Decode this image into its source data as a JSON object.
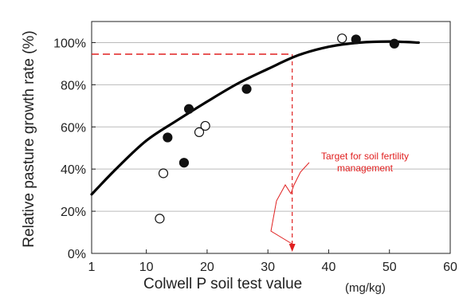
{
  "chart_data": {
    "type": "scatter",
    "title": "",
    "xlabel": "Colwell P soil test value",
    "xlabel_unit": "(mg/kg)",
    "ylabel": "Relative pasture growth rate (%)",
    "xlim": [
      1,
      60
    ],
    "ylim": [
      0,
      1.1
    ],
    "x_ticks": [
      1,
      10,
      20,
      30,
      40,
      50,
      60
    ],
    "x_tick_labels": [
      "1",
      "10",
      "20",
      "30",
      "40",
      "50",
      "60"
    ],
    "y_ticks": [
      0,
      0.2,
      0.4,
      0.6,
      0.8,
      1.0
    ],
    "y_tick_labels": [
      "0%",
      "20%",
      "40%",
      "60%",
      "80%",
      "100%"
    ],
    "grid": "horizontal",
    "series": [
      {
        "marker": "filled-circle",
        "points": [
          {
            "x": 13.5,
            "y": 0.55
          },
          {
            "x": 17.0,
            "y": 0.685
          },
          {
            "x": 16.2,
            "y": 0.43
          },
          {
            "x": 26.5,
            "y": 0.78
          },
          {
            "x": 44.5,
            "y": 1.015
          },
          {
            "x": 50.8,
            "y": 0.995
          }
        ]
      },
      {
        "marker": "open-circle",
        "points": [
          {
            "x": 12.2,
            "y": 0.165
          },
          {
            "x": 12.8,
            "y": 0.38
          },
          {
            "x": 18.7,
            "y": 0.575
          },
          {
            "x": 19.7,
            "y": 0.605
          },
          {
            "x": 42.2,
            "y": 1.02
          }
        ]
      },
      {
        "type": "line",
        "points": [
          [
            1,
            0.28
          ],
          [
            5,
            0.4
          ],
          [
            10,
            0.535
          ],
          [
            15,
            0.63
          ],
          [
            20,
            0.72
          ],
          [
            25,
            0.805
          ],
          [
            30,
            0.875
          ],
          [
            35,
            0.94
          ],
          [
            40,
            0.98
          ],
          [
            45,
            1.0
          ],
          [
            50,
            1.005
          ],
          [
            54.8,
            1.0
          ]
        ]
      }
    ],
    "target": {
      "x": 34,
      "y": 0.945
    },
    "annotation": {
      "lines": [
        "Target for soil fertility",
        "management"
      ],
      "color": "#e02020"
    },
    "colors": {
      "curve": "#000000",
      "grid": "#bbbbbb",
      "target": "#e02020"
    }
  }
}
